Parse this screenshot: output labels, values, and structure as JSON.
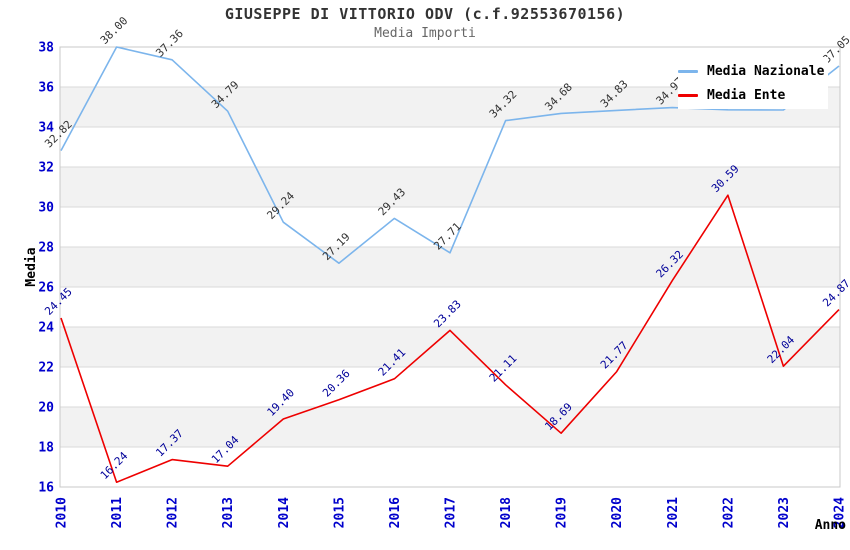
{
  "title": "GIUSEPPE DI VITTORIO ODV (c.f.92553670156)",
  "subtitle": "Media Importi",
  "legend": {
    "position": "top-right",
    "items": [
      {
        "label": "Media Nazionale",
        "color": "#7cb5ec"
      },
      {
        "label": "Media Ente",
        "color": "#ee0000"
      }
    ]
  },
  "axes": {
    "y_title": "Media",
    "x_title": "Anno",
    "tick_color": "#0000cc",
    "y_ticks": [
      16,
      18,
      20,
      22,
      24,
      26,
      28,
      30,
      32,
      34,
      36,
      38
    ]
  },
  "chart_data": {
    "type": "line",
    "title": "GIUSEPPE DI VITTORIO ODV (c.f.92553670156)",
    "subtitle": "Media Importi",
    "xlabel": "Anno",
    "ylabel": "Media",
    "x": [
      2010,
      2011,
      2012,
      2013,
      2014,
      2015,
      2016,
      2017,
      2018,
      2019,
      2020,
      2021,
      2022,
      2023,
      2024
    ],
    "ylim": [
      16,
      38
    ],
    "grid": "horizontal-bands-alternating",
    "band_colors": [
      "#ffffff",
      "#f2f2f2"
    ],
    "gridline_color": "#d9d9d9",
    "border_color": "#c8c8c8",
    "legend_position": "top-right",
    "series": [
      {
        "name": "Media Nazionale",
        "color": "#7cb5ec",
        "label_color": "#333333",
        "values": [
          32.82,
          38.0,
          37.36,
          34.79,
          29.24,
          27.19,
          29.43,
          27.71,
          34.32,
          34.68,
          34.83,
          34.97,
          34.86,
          34.85,
          37.05
        ],
        "occluded_labels_by_legend": [
          2021,
          2022,
          2023
        ]
      },
      {
        "name": "Media Ente",
        "color": "#ee0000",
        "label_color": "#000099",
        "values": [
          24.45,
          16.24,
          17.37,
          17.04,
          19.4,
          20.36,
          21.41,
          23.83,
          21.11,
          18.69,
          21.77,
          26.32,
          30.59,
          22.04,
          24.87
        ]
      }
    ]
  }
}
